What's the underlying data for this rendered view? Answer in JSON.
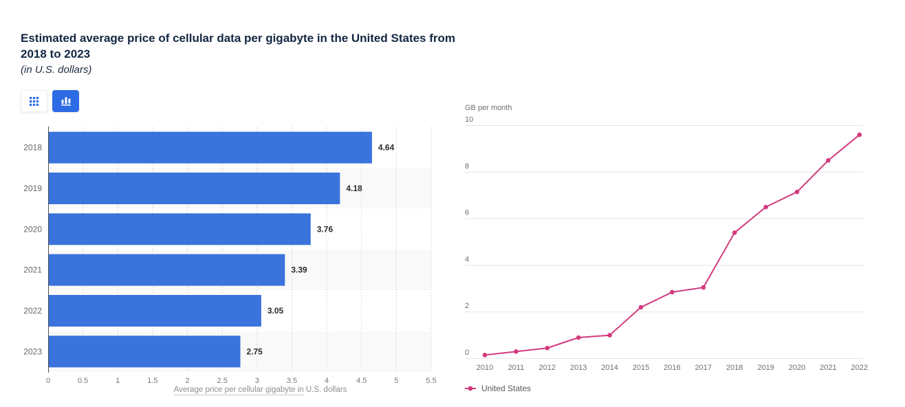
{
  "page": {
    "title": "Estimated average price of cellular data per gigabyte in the United States from 2018 to 2023",
    "subtitle": "(in U.S. dollars)"
  },
  "toolbar": {
    "buttons": [
      {
        "name": "table-view",
        "icon": "table-grid-icon",
        "selected": false
      },
      {
        "name": "chart-view",
        "icon": "bar-chart-icon",
        "selected": true
      }
    ]
  },
  "chart_data": [
    {
      "type": "bar",
      "orientation": "horizontal",
      "title": "Estimated average price of cellular data per gigabyte in the United States from 2018 to 2023",
      "subtitle": "(in U.S. dollars)",
      "categories": [
        "2018",
        "2019",
        "2020",
        "2021",
        "2022",
        "2023"
      ],
      "values": [
        4.64,
        4.18,
        3.76,
        3.39,
        3.05,
        2.75
      ],
      "value_labels": [
        "4.64",
        "4.18",
        "3.76",
        "3.39",
        "3.05",
        "2.75"
      ],
      "xlabel_linked": "Average price per cellular gigabyte in",
      "xlabel_plain": "U.S. dollars",
      "xlim": [
        0,
        5.5
      ],
      "xticks": [
        0,
        0.5,
        1,
        1.5,
        2,
        2.5,
        3,
        3.5,
        4,
        4.5,
        5,
        5.5
      ],
      "grid": "vertical-dotted",
      "legend": "none"
    },
    {
      "type": "line",
      "title": "",
      "ylabel": "GB per month",
      "x": [
        2010,
        2011,
        2012,
        2013,
        2014,
        2015,
        2016,
        2017,
        2018,
        2019,
        2020,
        2021,
        2022
      ],
      "series": [
        {
          "name": "United States",
          "values": [
            0.15,
            0.3,
            0.45,
            0.9,
            1.0,
            2.2,
            2.85,
            3.05,
            5.4,
            6.5,
            7.15,
            8.5,
            9.6
          ]
        }
      ],
      "ylim": [
        0,
        10
      ],
      "yticks": [
        0,
        2,
        4,
        6,
        8,
        10
      ],
      "grid": "horizontal",
      "legend_position": "bottom-left"
    }
  ],
  "colors": {
    "bar_blue": "#3a73dc",
    "button_blue": "#2d6be4",
    "line_pink": "#d23a7d",
    "title_navy": "#122741",
    "category_gray": "#666666",
    "tick_gray": "#77777c",
    "right_tick_gray": "#6e6e73",
    "value_dark": "#2b2b2b",
    "band_gray": "#f9f9f9",
    "dotted_grid": "#cccccc",
    "solid_grid": "#e5e5e5",
    "axis_line": "#4d4d4d",
    "legend_text": "#58595b"
  }
}
